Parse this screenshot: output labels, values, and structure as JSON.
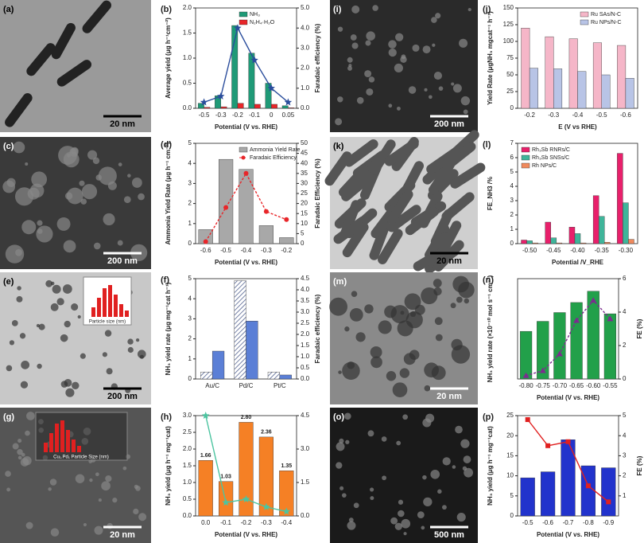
{
  "chart_data": [
    {
      "type": "bar",
      "panel": "(b)",
      "xlabel": "Potential (V vs. RHE)",
      "ylabel": "Average yield (μg h⁻¹cm⁻²)",
      "y2label": "Faradaic efficiency (%)",
      "categories": [
        "-0.5",
        "-0.3",
        "-0.2",
        "-0.1",
        "0",
        "0.05"
      ],
      "series": [
        {
          "name": "NH₃",
          "kind": "bar",
          "color": "#1f9a77",
          "values": [
            0.1,
            0.25,
            1.65,
            1.1,
            0.5,
            0.05
          ]
        },
        {
          "name": "N₂H₄·H₂O",
          "kind": "bar",
          "color": "#e8262a",
          "values": [
            0.02,
            0.03,
            0.1,
            0.08,
            0.08,
            0.01
          ]
        },
        {
          "kind": "line",
          "marker": "star",
          "axis": "y2",
          "color": "#2a4d9c",
          "values": [
            0.3,
            0.6,
            4.0,
            2.4,
            1.0,
            0.3
          ]
        }
      ],
      "ylim": [
        0,
        2
      ],
      "yticks": [
        {
          "value": 0,
          "label": "0.0"
        },
        {
          "value": 0.5,
          "label": "0.5"
        },
        {
          "value": 1,
          "label": "1.0"
        },
        {
          "value": 1.5,
          "label": "1.5"
        },
        {
          "value": 2,
          "label": "2.0"
        }
      ],
      "y2lim": [
        0,
        5
      ],
      "y2ticks": [
        {
          "value": 0,
          "label": "0.0"
        },
        {
          "value": 1,
          "label": "1.0"
        },
        {
          "value": 2,
          "label": "2.0"
        },
        {
          "value": 3,
          "label": "3.0"
        },
        {
          "value": 4,
          "label": "4.0"
        },
        {
          "value": 5,
          "label": "5.0"
        }
      ],
      "legend": "top-right"
    },
    {
      "type": "bar",
      "panel": "(d)",
      "xlabel": "Potential (V vs. RHE)",
      "ylabel": "Ammonia Yield Rate (μg h⁻¹ cm⁻²)",
      "y2label": "Faradaic Efficiency (%)",
      "categories": [
        "-0.6",
        "-0.5",
        "-0.4",
        "-0.3",
        "-0.2"
      ],
      "series": [
        {
          "name": "Ammonia Yield Rate",
          "kind": "bar",
          "color": "#a8a8a8",
          "values": [
            0.7,
            4.2,
            3.7,
            0.9,
            0.3
          ]
        },
        {
          "name": "Faradaic Efficiency",
          "kind": "line",
          "dashed": true,
          "marker": "circle",
          "axis": "y2",
          "color": "#e8262a",
          "values": [
            1,
            18,
            35,
            16,
            12
          ]
        }
      ],
      "ylim": [
        0,
        5
      ],
      "yticks": [
        0,
        1,
        2,
        3,
        4,
        5
      ],
      "y2lim": [
        0,
        50
      ],
      "y2ticks": [
        0,
        5,
        10,
        15,
        20,
        25,
        30,
        35,
        40,
        45,
        50
      ],
      "legend": "top-right"
    },
    {
      "type": "bar",
      "panel": "(f)",
      "xlabel": "",
      "ylabel": "NH₃ yield rate (μg mg⁻¹cat h⁻¹)",
      "y2label": "Faradaic efficiency (%)",
      "categories": [
        "Au/C",
        "Pd/C",
        "Pt/C"
      ],
      "series": [
        {
          "kind": "bar",
          "hatch": true,
          "color": "#4a5a8a",
          "values": [
            0.35,
            4.9,
            0.35
          ]
        },
        {
          "kind": "bar",
          "axis": "y2",
          "color": "#5b7fd6",
          "values": [
            1.25,
            2.6,
            0.18
          ]
        }
      ],
      "ylim": [
        0,
        5
      ],
      "yticks": [
        0,
        1,
        2,
        3,
        4,
        5
      ],
      "y2lim": [
        0,
        4.5
      ],
      "y2ticks": [
        {
          "value": 0,
          "label": "0.0"
        },
        {
          "value": 0.5,
          "label": "0.5"
        },
        {
          "value": 1,
          "label": "1.0"
        },
        {
          "value": 1.5,
          "label": "1.5"
        },
        {
          "value": 2,
          "label": "2.0"
        },
        {
          "value": 2.5,
          "label": "2.5"
        },
        {
          "value": 3,
          "label": "3.0"
        },
        {
          "value": 3.5,
          "label": "3.5"
        },
        {
          "value": 4,
          "label": "4.0"
        },
        {
          "value": 4.5,
          "label": "4.5"
        }
      ]
    },
    {
      "type": "bar",
      "panel": "(h)",
      "xlabel": "Potential (V vs. RHE)",
      "ylabel": "NH₃ yield (μg h⁻¹ mg⁻¹cat)",
      "categories": [
        "0.0",
        "-0.1",
        "-0.2",
        "-0.3",
        "-0.4"
      ],
      "series": [
        {
          "kind": "bar",
          "color": "#f58025",
          "values": [
            1.66,
            1.03,
            2.8,
            2.36,
            1.35
          ],
          "value_labels": [
            "1.66",
            "1.03",
            "2.80",
            "2.36",
            "1.35"
          ]
        },
        {
          "kind": "line",
          "marker": "star",
          "axis": "y2",
          "color": "#4cc4a0",
          "values": [
            4.5,
            0.6,
            0.75,
            0.4,
            0.2
          ]
        }
      ],
      "ylim": [
        0,
        3
      ],
      "yticks": [
        {
          "value": 0,
          "label": "0.0"
        },
        {
          "value": 0.5,
          "label": "0.5"
        },
        {
          "value": 1,
          "label": "1.0"
        },
        {
          "value": 1.5,
          "label": "1.5"
        },
        {
          "value": 2,
          "label": "2.0"
        },
        {
          "value": 2.5,
          "label": "2.5"
        },
        {
          "value": 3,
          "label": "3.0"
        }
      ],
      "y2lim": [
        0,
        4.5
      ],
      "y2ticks": [
        {
          "value": 0,
          "label": "0.0"
        },
        {
          "value": 1.5,
          "label": "1.5"
        },
        {
          "value": 3,
          "label": "3.0"
        },
        {
          "value": 4.5,
          "label": "4.5"
        }
      ]
    },
    {
      "type": "bar",
      "panel": "(j)",
      "xlabel": "E (V vs RHE)",
      "ylabel": "Yield Rate (μgNH₃ mgcat⁻¹ h⁻¹)",
      "categories": [
        "-0.2",
        "-0.3",
        "-0.4",
        "-0.5",
        "-0.6"
      ],
      "series": [
        {
          "name": "Ru SAs/N-C",
          "kind": "bar",
          "color": "#f5b6c8",
          "values": [
            120,
            107,
            104,
            98,
            94
          ]
        },
        {
          "name": "Ru NPs/N-C",
          "kind": "bar",
          "color": "#b8c4e6",
          "values": [
            60,
            59,
            55,
            50,
            45
          ]
        }
      ],
      "ylim": [
        0,
        150
      ],
      "yticks": [
        0,
        25,
        50,
        75,
        100,
        125,
        150
      ],
      "legend": "top-right"
    },
    {
      "type": "bar",
      "panel": "(l)",
      "xlabel": "Potential /V_RHE",
      "ylabel": "FE_NH3 /%",
      "categories": [
        "-0.50",
        "-0.45",
        "-0.40",
        "-0.35",
        "-0.30"
      ],
      "series": [
        {
          "name": "Rh₃Sb RNRs/C",
          "kind": "bar",
          "color": "#e8206b",
          "values": [
            0.25,
            1.5,
            1.15,
            3.35,
            6.3
          ]
        },
        {
          "name": "Rh₃Sb SNSs/C",
          "kind": "bar",
          "color": "#3fb59a",
          "values": [
            0.2,
            0.4,
            0.7,
            1.9,
            2.85
          ]
        },
        {
          "name": "Rh NPs/C",
          "kind": "bar",
          "color": "#f08a5d",
          "values": [
            0.05,
            0.05,
            0.05,
            0.1,
            0.3
          ]
        }
      ],
      "ylim": [
        0,
        7
      ],
      "yticks": [
        0,
        1,
        2,
        3,
        4,
        5,
        6,
        7
      ],
      "legend": "top-left"
    },
    {
      "type": "bar",
      "panel": "(n)",
      "xlabel": "Potential (V vs. RHE)",
      "ylabel": "NH₃ yield rate (×10⁻¹⁰ mol s⁻¹ cm⁻²)",
      "y2label": "FE (%)",
      "categories": [
        "-0.80",
        "-0.75",
        "-0.70",
        "-0.65",
        "-0.60",
        "-0.55"
      ],
      "series": [
        {
          "kind": "bar",
          "color": "#22a04a",
          "values": [
            1.9,
            2.3,
            2.65,
            3.05,
            3.5,
            2.6
          ]
        },
        {
          "kind": "line",
          "dashed": true,
          "marker": "triangle",
          "axis": "y2",
          "color": "#7b2d8e",
          "values": [
            0.2,
            0.5,
            1.5,
            3.5,
            4.7,
            3.6
          ]
        }
      ],
      "ylim": [
        0,
        4
      ],
      "yticks": [],
      "y2lim": [
        0,
        6
      ],
      "y2ticks": [
        0,
        2,
        4,
        6
      ]
    },
    {
      "type": "bar",
      "panel": "(p)",
      "xlabel": "Potential (V vs. RHE)",
      "ylabel": "NH₃ yield (μg h⁻¹ mg⁻¹cat)",
      "y2label": "FE (%)",
      "categories": [
        "-0.5",
        "-0.6",
        "-0.7",
        "-0.8",
        "-0.9"
      ],
      "series": [
        {
          "kind": "bar",
          "color": "#2233cc",
          "values": [
            9.5,
            11,
            19,
            12.5,
            12
          ]
        },
        {
          "kind": "line",
          "marker": "square",
          "axis": "y2",
          "color": "#e02020",
          "values": [
            4.8,
            3.5,
            3.7,
            1.5,
            0.7
          ]
        }
      ],
      "ylim": [
        0,
        25
      ],
      "yticks": [
        0,
        5,
        10,
        15,
        20,
        25
      ],
      "y2lim": [
        0,
        5
      ],
      "y2ticks": [
        1,
        2,
        3,
        4,
        5
      ]
    }
  ],
  "images": [
    {
      "panel": "(a)",
      "scale_bar": "20 nm"
    },
    {
      "panel": "(c)",
      "scale_bar": "200 nm"
    },
    {
      "panel": "(e)",
      "scale_bar": "200 nm",
      "inset_label": "Particle size (nm)"
    },
    {
      "panel": "(g)",
      "scale_bar": "20 nm",
      "inset_label": "Cu₁.Pd₁ Particle Size (nm)"
    },
    {
      "panel": "(i)",
      "scale_bar": "200 nm"
    },
    {
      "panel": "(k)",
      "scale_bar": "20 nm"
    },
    {
      "panel": "(m)",
      "scale_bar": "20 nm"
    },
    {
      "panel": "(o)",
      "scale_bar": "500 nm"
    }
  ]
}
